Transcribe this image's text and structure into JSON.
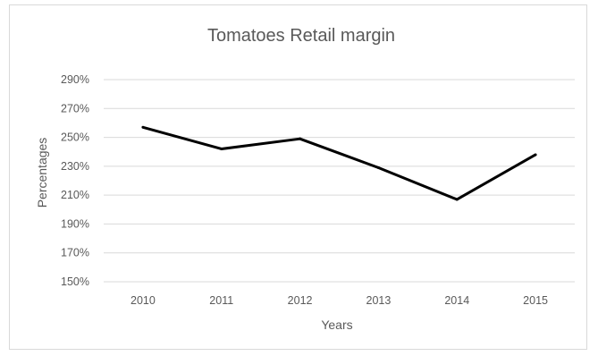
{
  "chart_data": {
    "type": "line",
    "title": "Tomatoes Retail margin",
    "xlabel": "Years",
    "ylabel": "Percentages",
    "categories": [
      "2010",
      "2011",
      "2012",
      "2013",
      "2014",
      "2015"
    ],
    "series": [
      {
        "values": [
          257,
          242,
          249,
          229,
          207,
          238
        ]
      }
    ],
    "ylim": [
      150,
      290
    ],
    "yticks": [
      150,
      170,
      190,
      210,
      230,
      250,
      270,
      290
    ],
    "ytick_labels": [
      "150%",
      "170%",
      "190%",
      "210%",
      "230%",
      "250%",
      "270%",
      "290%"
    ],
    "grid": true,
    "legend": "none",
    "colors": {
      "line": "#000000",
      "grid": "#d9d9d9",
      "text": "#595959"
    }
  }
}
